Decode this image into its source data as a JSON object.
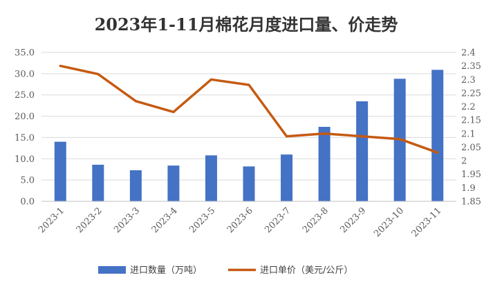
{
  "chart_data": {
    "type": "bar+line",
    "title": "2023年1-11月棉花月度进口量、价走势",
    "categories": [
      "2023-1",
      "2023-2",
      "2023-3",
      "2023-4",
      "2023-5",
      "2023-6",
      "2023-7",
      "2023-8",
      "2023-9",
      "2023-10",
      "2023-11"
    ],
    "series": [
      {
        "name": "进口数量（万吨）",
        "type": "bar",
        "axis": "left",
        "color": "#4472C4",
        "values": [
          14.0,
          8.6,
          7.3,
          8.4,
          10.8,
          8.2,
          11.0,
          17.5,
          23.5,
          28.8,
          30.9
        ]
      },
      {
        "name": "进口单价（美元/公斤）",
        "type": "line",
        "axis": "right",
        "color": "#C55A11",
        "values": [
          2.35,
          2.32,
          2.22,
          2.18,
          2.3,
          2.28,
          2.09,
          2.1,
          2.09,
          2.08,
          2.03
        ]
      }
    ],
    "y_left": {
      "ylim": [
        0,
        35
      ],
      "ticks": [
        "0.0",
        "5.0",
        "10.0",
        "15.0",
        "20.0",
        "25.0",
        "30.0",
        "35.0"
      ],
      "tick_values": [
        0,
        5,
        10,
        15,
        20,
        25,
        30,
        35
      ]
    },
    "y_right": {
      "ylim": [
        1.85,
        2.4
      ],
      "ticks": [
        "1.85",
        "1.9",
        "1.95",
        "2",
        "2.05",
        "2.1",
        "2.15",
        "2.2",
        "2.25",
        "2.3",
        "2.35",
        "2.4"
      ],
      "tick_values": [
        1.85,
        1.9,
        1.95,
        2.0,
        2.05,
        2.1,
        2.15,
        2.2,
        2.25,
        2.3,
        2.35,
        2.4
      ]
    },
    "grid": true,
    "legend_position": "bottom"
  }
}
